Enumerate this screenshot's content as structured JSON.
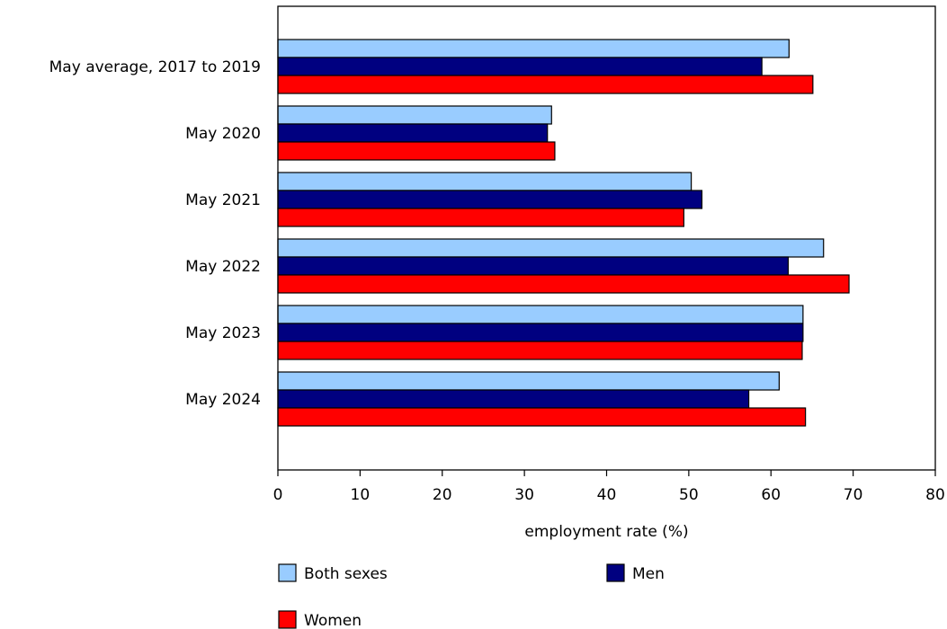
{
  "chart_data": {
    "type": "bar",
    "orientation": "horizontal",
    "categories": [
      "May average, 2017 to 2019",
      "May 2020",
      "May 2021",
      "May 2022",
      "May 2023",
      "May 2024"
    ],
    "series": [
      {
        "name": "Both sexes",
        "color": "#99ccff",
        "values": [
          62.2,
          33.3,
          50.3,
          66.4,
          63.9,
          61.0
        ]
      },
      {
        "name": "Men",
        "color": "#000080",
        "values": [
          58.9,
          32.8,
          51.6,
          62.1,
          63.9,
          57.3
        ]
      },
      {
        "name": "Women",
        "color": "#ff0000",
        "values": [
          65.1,
          33.7,
          49.4,
          69.5,
          63.8,
          64.2
        ]
      }
    ],
    "xlabel": "employment rate (%)",
    "ylabel": "",
    "xlim": [
      0,
      80
    ],
    "xticks": [
      0,
      10,
      20,
      30,
      40,
      50,
      60,
      70,
      80
    ],
    "grid": false,
    "legend_position": "bottom"
  }
}
